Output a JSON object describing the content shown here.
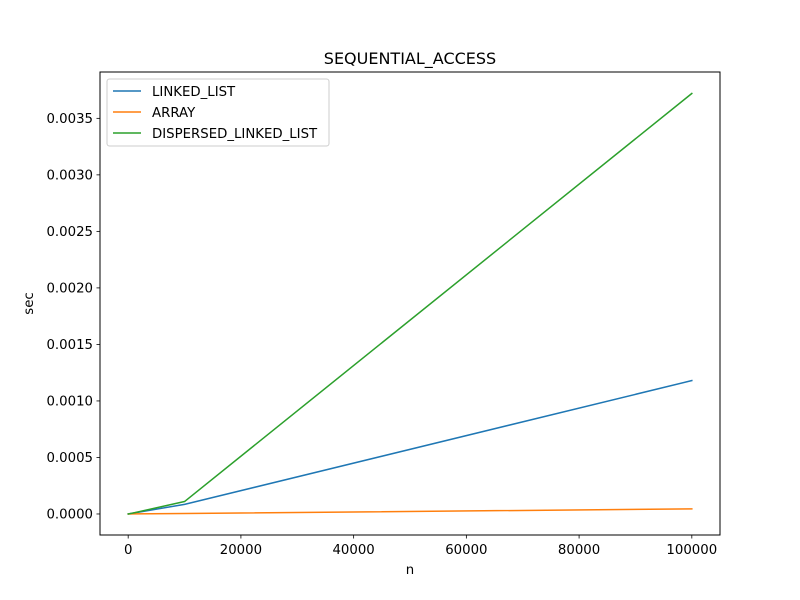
{
  "chart_data": {
    "type": "line",
    "title": "SEQUENTIAL_ACCESS",
    "xlabel": "n",
    "ylabel": "sec",
    "x": [
      10,
      100,
      1000,
      10000,
      100000
    ],
    "xlim": [
      -5000,
      105000
    ],
    "ylim": [
      -0.000186,
      0.00391
    ],
    "xticks": [
      0,
      20000,
      40000,
      60000,
      80000,
      100000
    ],
    "xtick_labels": [
      "0",
      "20000",
      "40000",
      "60000",
      "80000",
      "100000"
    ],
    "yticks": [
      0,
      0.0005,
      0.001,
      0.0015,
      0.002,
      0.0025,
      0.003,
      0.0035
    ],
    "ytick_labels": [
      "0.0000",
      "0.0005",
      "0.0010",
      "0.0015",
      "0.0020",
      "0.0025",
      "0.0030",
      "0.0035"
    ],
    "grid": false,
    "legend_position": "top-left",
    "series": [
      {
        "name": "LINKED_LIST",
        "color": "#1f77b4",
        "values": [
          1e-07,
          1e-06,
          9e-06,
          8.5e-05,
          0.00118
        ]
      },
      {
        "name": "ARRAY",
        "color": "#ff7f0e",
        "values": [
          1e-07,
          3e-07,
          1e-06,
          4e-06,
          4.5e-05
        ]
      },
      {
        "name": "DISPERSED_LINKED_LIST",
        "color": "#2ca02c",
        "values": [
          1e-07,
          1e-06,
          1e-05,
          0.00011,
          0.00372
        ]
      }
    ]
  }
}
